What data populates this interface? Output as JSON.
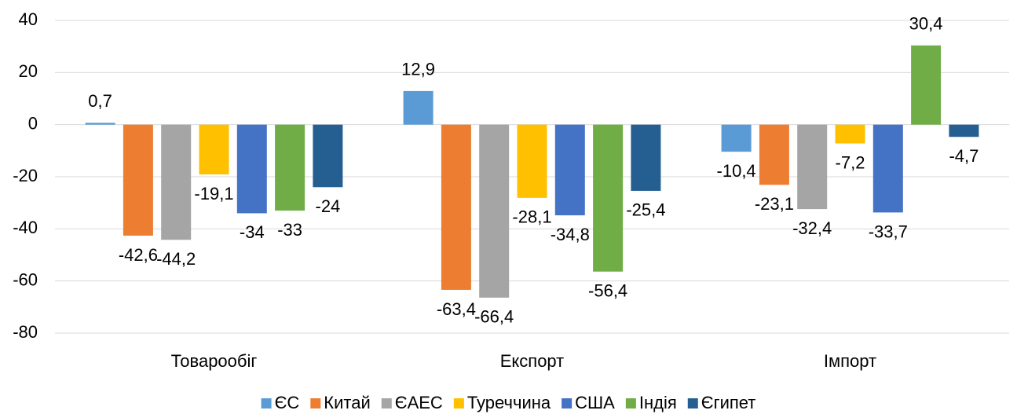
{
  "chart_data": {
    "type": "bar",
    "categories": [
      "Товарообіг",
      "Експорт",
      "Імпорт"
    ],
    "series": [
      {
        "name": "ЄС",
        "color": "#5b9bd5",
        "values": [
          0.7,
          12.9,
          -10.4
        ],
        "value_labels": [
          "0,7",
          "12,9",
          "-10,4"
        ]
      },
      {
        "name": "Китай",
        "color": "#ed7d31",
        "values": [
          -42.6,
          -63.4,
          -23.1
        ],
        "value_labels": [
          "-42,6",
          "-63,4",
          "-23,1"
        ]
      },
      {
        "name": "ЄАЕС",
        "color": "#a5a5a5",
        "values": [
          -44.2,
          -66.4,
          -32.4
        ],
        "value_labels": [
          "-44,2",
          "-66,4",
          "-32,4"
        ]
      },
      {
        "name": "Туреччина",
        "color": "#ffc000",
        "values": [
          -19.1,
          -28.1,
          -7.2
        ],
        "value_labels": [
          "-19,1",
          "-28,1",
          "-7,2"
        ]
      },
      {
        "name": "США",
        "color": "#4472c4",
        "values": [
          -34,
          -34.8,
          -33.7
        ],
        "value_labels": [
          "-34",
          "-34,8",
          "-33,7"
        ]
      },
      {
        "name": "Індія",
        "color": "#70ad47",
        "values": [
          -33,
          -56.4,
          30.4
        ],
        "value_labels": [
          "-33",
          "-56,4",
          "30,4"
        ]
      },
      {
        "name": "Єгипет",
        "color": "#255e91",
        "values": [
          -24,
          -25.4,
          -4.7
        ],
        "value_labels": [
          "-24",
          "-25,4",
          "-4,7"
        ]
      }
    ],
    "ylim": [
      -80,
      40
    ],
    "yticks": [
      -80,
      -60,
      -40,
      -20,
      0,
      20,
      40
    ],
    "grid": true,
    "legend": "bottom"
  }
}
